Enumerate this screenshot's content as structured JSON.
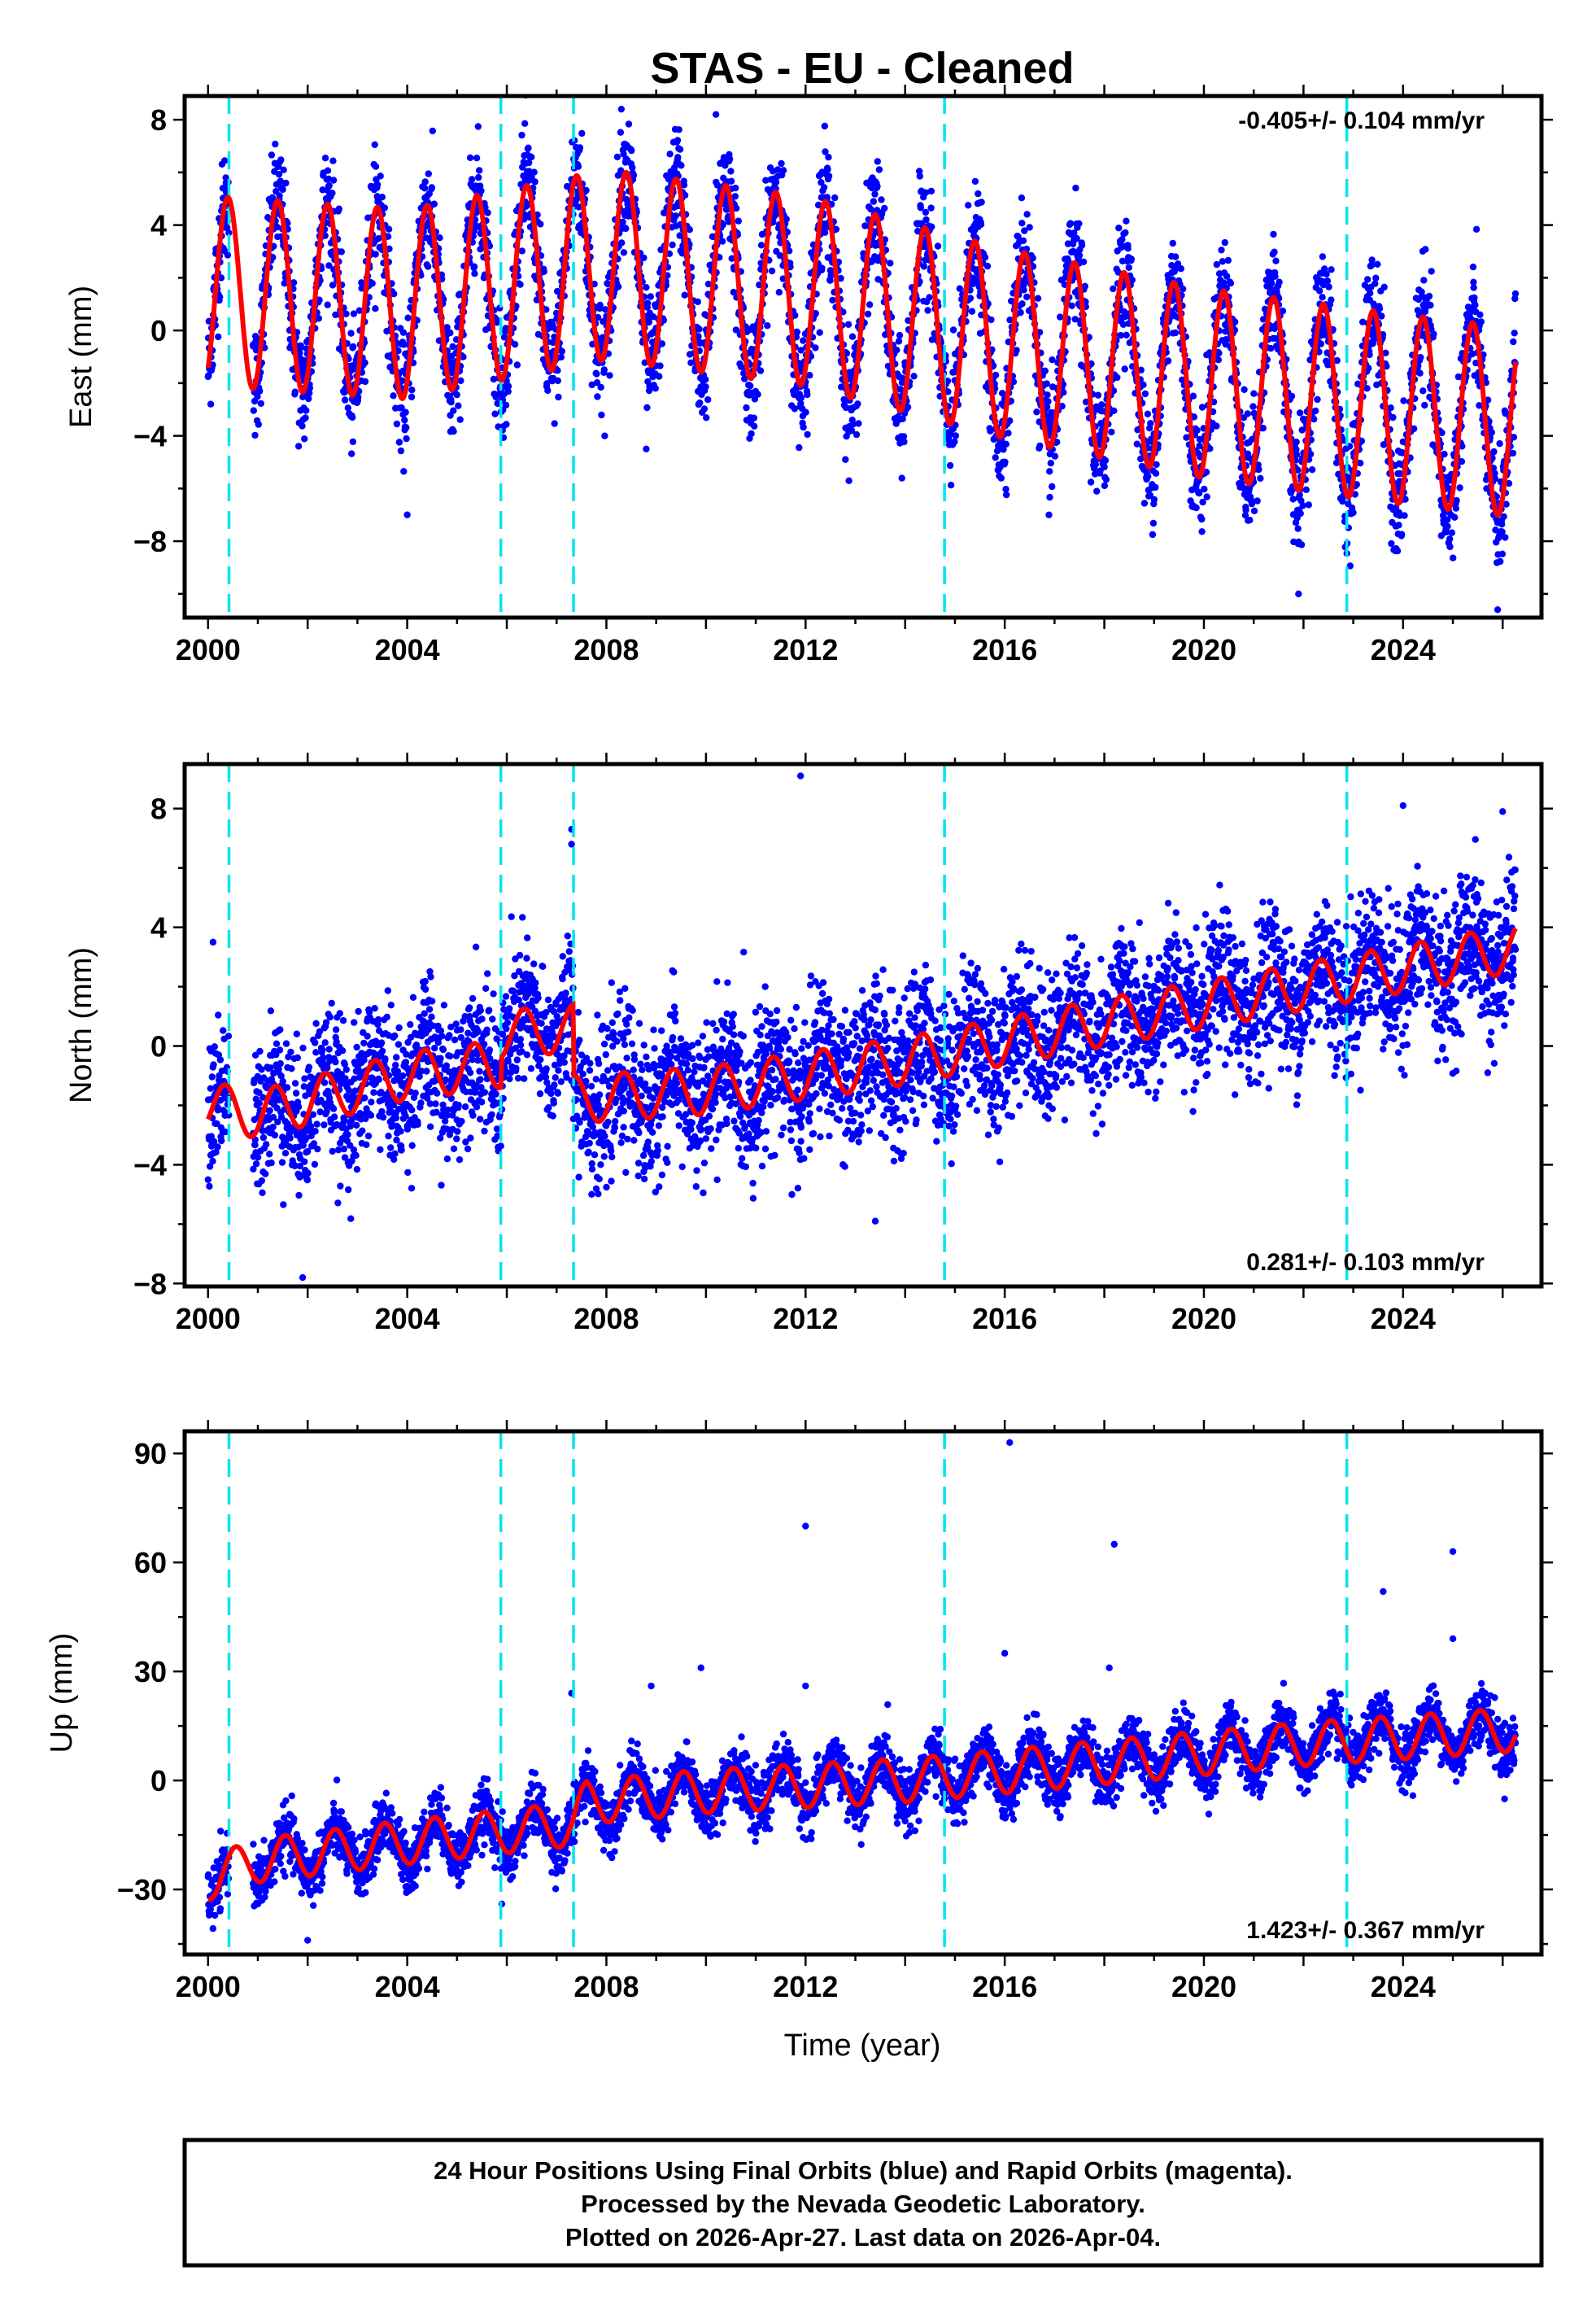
{
  "chart_data": {
    "type": "scatter",
    "title": "STAS  - EU - Cleaned",
    "xlabel": "Time (year)",
    "xlim": [
      1999.53,
      2026.78
    ],
    "xticks": [
      2000,
      2004,
      2008,
      2012,
      2016,
      2020,
      2024
    ],
    "xtick_labels": [
      "2000",
      "2004",
      "2008",
      "2012",
      "2016",
      "2020",
      "2024"
    ],
    "data_range": [
      2000.0,
      2026.26
    ],
    "data_gap": [
      2000.42,
      2000.9
    ],
    "equipment_change_lines": [
      2000.42,
      2005.88,
      2007.34,
      2014.79,
      2022.87
    ],
    "series_colors": {
      "points": "#0000ff",
      "model": "#ff0000",
      "events": "#00e5ee"
    },
    "panels": [
      {
        "id": "east",
        "ylabel": "East (mm)",
        "ylim": [
          -10.9,
          8.9
        ],
        "yticks": [
          -8,
          -4,
          0,
          4,
          8
        ],
        "ytick_labels": [
          "−8",
          "−4",
          "0",
          "4",
          "8"
        ],
        "yminor": 2,
        "rate_text": "-0.405+/- 0.104 mm/yr",
        "rate_position": "top-right",
        "model_mean_knots": [
          [
            2000,
            1.5
          ],
          [
            2004,
            1.0
          ],
          [
            2008,
            2.5
          ],
          [
            2012,
            1.5
          ],
          [
            2016,
            -0.5
          ],
          [
            2020,
            -2.0
          ],
          [
            2024,
            -3.0
          ],
          [
            2026.3,
            -3.5
          ]
        ],
        "annual_amplitude": 3.6,
        "annual_peak_phase": 0.4,
        "noise_sigma": 1.1,
        "outliers": [
          [
            2008.3,
            8.4
          ],
          [
            2010.2,
            8.2
          ],
          [
            2008.8,
            -4.5
          ],
          [
            2012.8,
            -4.9
          ],
          [
            2021.9,
            -10.0
          ],
          [
            2025.9,
            -10.6
          ],
          [
            2004.0,
            -7.0
          ]
        ]
      },
      {
        "id": "north",
        "ylabel": "North (mm)",
        "ylim": [
          -8.1,
          9.5
        ],
        "yticks": [
          -8,
          -4,
          0,
          4,
          8
        ],
        "ytick_labels": [
          "−8",
          "−4",
          "0",
          "4",
          "8"
        ],
        "yminor": 2,
        "rate_text": "0.281+/- 0.103 mm/yr",
        "rate_position": "bottom-right",
        "model_mean_knots": [
          [
            2000,
            -2.0
          ],
          [
            2001,
            -2.3
          ],
          [
            2004,
            -1.0
          ],
          [
            2005.88,
            -0.6
          ],
          [
            2005.9,
            0.4
          ],
          [
            2007.33,
            0.6
          ],
          [
            2007.35,
            -1.8
          ],
          [
            2010,
            -1.5
          ],
          [
            2014,
            -0.5
          ],
          [
            2018,
            0.8
          ],
          [
            2022,
            2.0
          ],
          [
            2026.3,
            3.3
          ]
        ],
        "annual_amplitude": 0.8,
        "annual_peak_phase": 0.35,
        "noise_sigma": 1.2,
        "outliers": [
          [
            2011.9,
            9.1
          ],
          [
            2001.9,
            -7.8
          ],
          [
            2000.1,
            3.5
          ],
          [
            2007.3,
            7.3
          ],
          [
            2007.3,
            6.8
          ],
          [
            2013.4,
            -5.9
          ],
          [
            2025.7,
            -0.9
          ],
          [
            2024.0,
            8.1
          ],
          [
            2026.0,
            7.9
          ]
        ]
      },
      {
        "id": "up",
        "ylabel": "Up (mm)",
        "ylim": [
          -47.9,
          96.1
        ],
        "yticks": [
          -30,
          0,
          30,
          60,
          90
        ],
        "ytick_labels": [
          "−30",
          "0",
          "30",
          "60",
          "90"
        ],
        "yminor": 15,
        "rate_text": "1.423+/- 0.367 mm/yr",
        "rate_position": "bottom-right",
        "model_mean_knots": [
          [
            2000,
            -27
          ],
          [
            2001,
            -22
          ],
          [
            2004,
            -17
          ],
          [
            2007.33,
            -12
          ],
          [
            2007.6,
            -6
          ],
          [
            2010,
            -3
          ],
          [
            2014,
            0
          ],
          [
            2018,
            5
          ],
          [
            2022,
            10
          ],
          [
            2026.3,
            14
          ]
        ],
        "annual_amplitude": 6,
        "annual_peak_phase": 0.55,
        "noise_sigma": 3.8,
        "outliers": [
          [
            2012.0,
            70
          ],
          [
            2016.1,
            93
          ],
          [
            2016.0,
            35
          ],
          [
            2018.2,
            65
          ],
          [
            2023.6,
            52
          ],
          [
            2025.0,
            63
          ],
          [
            2025.0,
            39
          ],
          [
            2009.9,
            31
          ],
          [
            2008.9,
            26
          ],
          [
            2012.0,
            26
          ],
          [
            2007.3,
            24
          ],
          [
            2002.0,
            -44
          ],
          [
            2005.9,
            -34
          ],
          [
            2018.1,
            31
          ]
        ]
      }
    ]
  },
  "footer": {
    "line1": "24 Hour Positions Using Final Orbits (blue) and Rapid Orbits (magenta).",
    "line2": "Processed by the Nevada Geodetic Laboratory.",
    "line3": "Plotted on 2026-Apr-27. Last data on 2026-Apr-04."
  }
}
